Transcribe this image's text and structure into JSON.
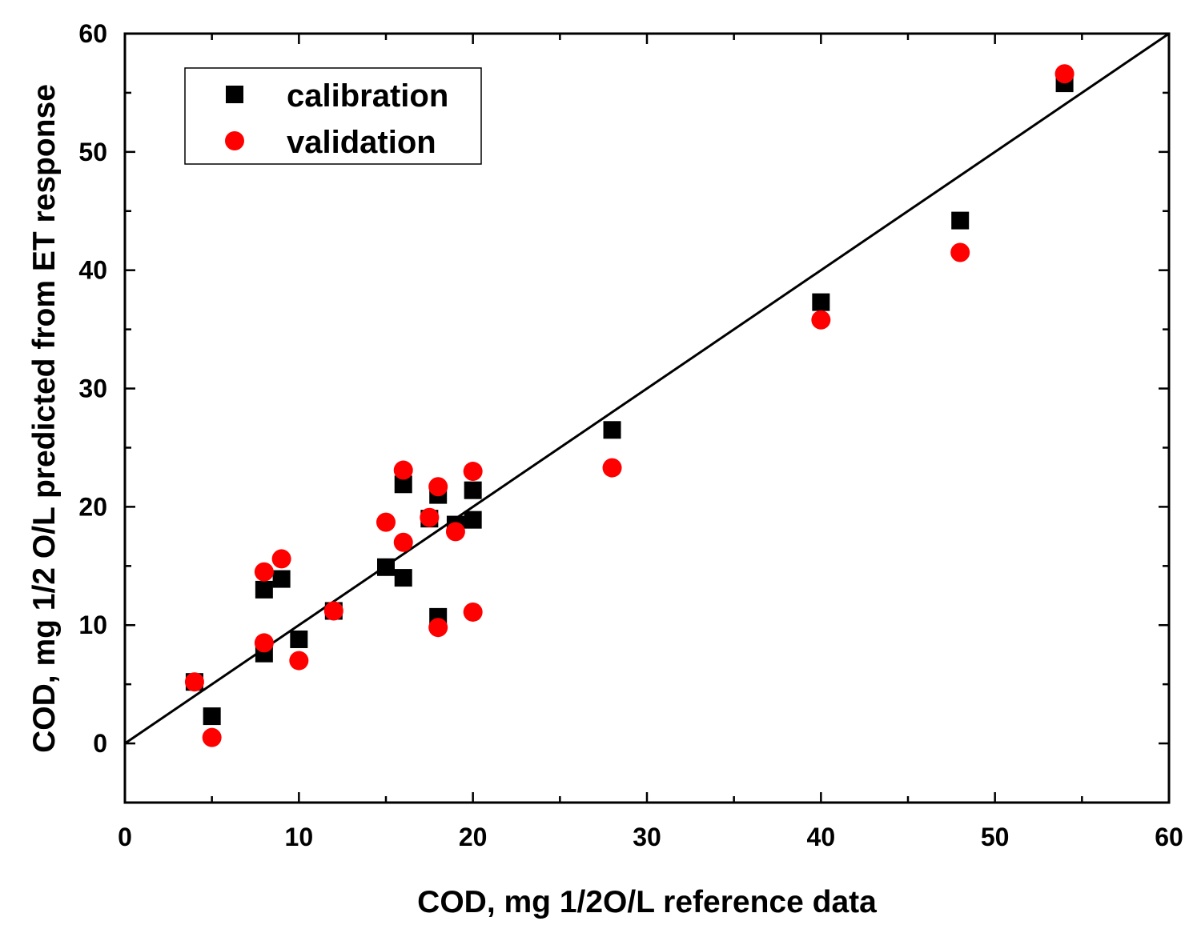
{
  "chart_data": {
    "type": "scatter",
    "title": "",
    "xlabel": "COD, mg 1/2O/L reference data",
    "ylabel": "COD, mg 1/2 O/L predicted from ET response",
    "xlim": [
      0,
      60
    ],
    "ylim": [
      -5,
      60
    ],
    "x_ticks": [
      0,
      10,
      20,
      30,
      40,
      50,
      60
    ],
    "y_ticks": [
      0,
      10,
      20,
      30,
      40,
      50,
      60
    ],
    "x_tick_labels": [
      "0",
      "10",
      "20",
      "30",
      "40",
      "50",
      "60"
    ],
    "y_tick_labels": [
      "0",
      "10",
      "20",
      "30",
      "40",
      "50",
      "60"
    ],
    "grid": false,
    "legend_position": "top-left",
    "reference_line": {
      "x": [
        0,
        60
      ],
      "y": [
        0,
        60
      ]
    },
    "series": [
      {
        "name": "calibration",
        "marker": "square",
        "color": "#000000",
        "points": [
          [
            4,
            5.2
          ],
          [
            5,
            2.3
          ],
          [
            8,
            13.0
          ],
          [
            8,
            7.6
          ],
          [
            9,
            13.9
          ],
          [
            10,
            8.8
          ],
          [
            12,
            11.2
          ],
          [
            15,
            14.9
          ],
          [
            16,
            21.9
          ],
          [
            16,
            14.0
          ],
          [
            17.5,
            19.0
          ],
          [
            18,
            21.0
          ],
          [
            18,
            10.7
          ],
          [
            19,
            18.5
          ],
          [
            20,
            21.4
          ],
          [
            20,
            18.9
          ],
          [
            28,
            26.5
          ],
          [
            40,
            37.3
          ],
          [
            48,
            44.2
          ],
          [
            54,
            55.8
          ]
        ]
      },
      {
        "name": "validation",
        "marker": "circle",
        "color": "#ff0000",
        "points": [
          [
            4,
            5.2
          ],
          [
            5,
            0.5
          ],
          [
            8,
            14.5
          ],
          [
            8,
            8.5
          ],
          [
            9,
            15.6
          ],
          [
            10,
            7.0
          ],
          [
            12,
            11.2
          ],
          [
            15,
            18.7
          ],
          [
            16,
            23.1
          ],
          [
            16,
            17.0
          ],
          [
            17.5,
            19.1
          ],
          [
            18,
            21.7
          ],
          [
            18,
            9.8
          ],
          [
            19,
            17.9
          ],
          [
            20,
            23.0
          ],
          [
            20,
            11.1
          ],
          [
            28,
            23.3
          ],
          [
            40,
            35.8
          ],
          [
            48,
            41.5
          ],
          [
            54,
            56.6
          ]
        ]
      }
    ]
  }
}
